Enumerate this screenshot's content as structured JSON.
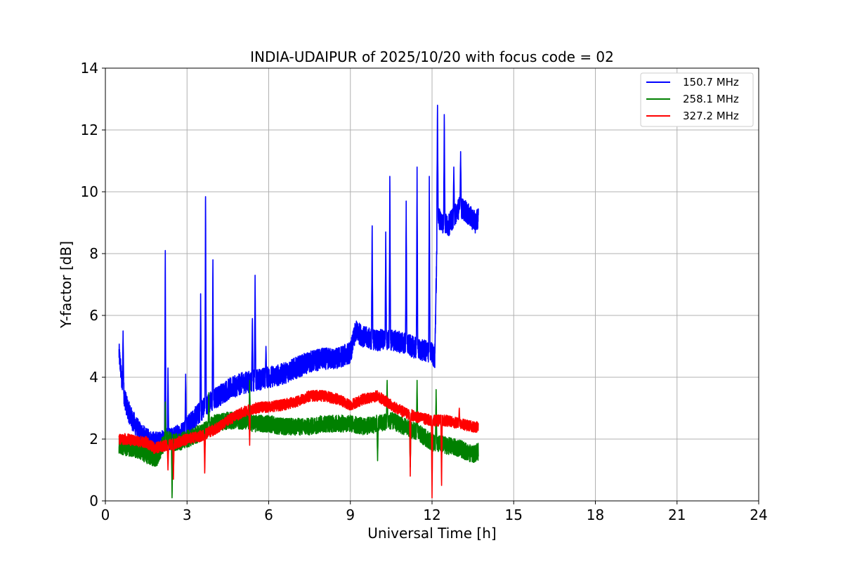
{
  "chart_data": {
    "type": "line",
    "title": "INDIA-UDAIPUR of 2025/10/20 with focus code = 02",
    "xlabel": "Universal Time [h]",
    "ylabel": "Y-factor [dB]",
    "xlim": [
      0,
      24
    ],
    "ylim": [
      0,
      14
    ],
    "xticks": [
      0,
      3,
      6,
      9,
      12,
      15,
      18,
      21,
      24
    ],
    "yticks": [
      0,
      2,
      4,
      6,
      8,
      10,
      12,
      14
    ],
    "grid": true,
    "legend_position": "top-right",
    "series": [
      {
        "name": "150.7 MHz",
        "color": "#0000ff",
        "noise": 0.35,
        "x": [
          0.5,
          0.55,
          0.6,
          0.7,
          0.8,
          1.0,
          1.2,
          1.5,
          1.8,
          2.0,
          2.2,
          2.4,
          2.6,
          2.8,
          3.0,
          3.3,
          3.6,
          4.0,
          4.5,
          5.0,
          5.5,
          6.0,
          6.5,
          7.0,
          7.5,
          8.0,
          8.5,
          9.0,
          9.2,
          9.5,
          10.0,
          10.5,
          11.0,
          11.5,
          12.0,
          12.1,
          12.2,
          12.4,
          12.6,
          12.8,
          13.0,
          13.2,
          13.4,
          13.6,
          13.7
        ],
        "y": [
          4.8,
          4.4,
          3.9,
          3.4,
          3.0,
          2.6,
          2.3,
          2.0,
          1.9,
          1.9,
          2.0,
          2.0,
          2.1,
          2.2,
          2.4,
          2.7,
          3.0,
          3.3,
          3.6,
          3.8,
          3.9,
          4.0,
          4.1,
          4.3,
          4.5,
          4.6,
          4.6,
          4.8,
          5.5,
          5.3,
          5.2,
          5.2,
          5.1,
          4.9,
          4.8,
          4.6,
          9.2,
          9.0,
          8.9,
          9.2,
          9.5,
          9.4,
          9.2,
          9.0,
          9.2
        ],
        "spikes": [
          [
            0.65,
            5.5
          ],
          [
            2.2,
            8.1
          ],
          [
            2.3,
            4.3
          ],
          [
            2.95,
            4.1
          ],
          [
            3.5,
            6.7
          ],
          [
            3.68,
            10.2
          ],
          [
            3.95,
            7.8
          ],
          [
            5.4,
            5.9
          ],
          [
            5.5,
            7.3
          ],
          [
            5.9,
            5.0
          ],
          [
            9.8,
            8.9
          ],
          [
            10.3,
            8.7
          ],
          [
            10.45,
            10.5
          ],
          [
            11.05,
            9.7
          ],
          [
            11.45,
            10.8
          ],
          [
            11.9,
            10.5
          ],
          [
            12.2,
            12.8
          ],
          [
            12.45,
            12.5
          ],
          [
            12.8,
            10.8
          ],
          [
            13.05,
            11.3
          ]
        ]
      },
      {
        "name": "258.1 MHz",
        "color": "#008000",
        "noise": 0.28,
        "x": [
          0.5,
          0.7,
          1.0,
          1.3,
          1.5,
          1.7,
          1.9,
          2.1,
          2.3,
          2.5,
          2.7,
          3.0,
          3.5,
          4.0,
          4.5,
          5.0,
          5.5,
          6.0,
          6.5,
          7.0,
          7.5,
          8.0,
          8.5,
          9.0,
          9.5,
          10.0,
          10.5,
          11.0,
          11.5,
          12.0,
          12.5,
          13.0,
          13.5,
          13.7
        ],
        "y": [
          1.8,
          1.75,
          1.7,
          1.6,
          1.5,
          1.4,
          1.4,
          1.8,
          2.0,
          1.9,
          1.9,
          2.0,
          2.2,
          2.5,
          2.6,
          2.6,
          2.5,
          2.5,
          2.4,
          2.4,
          2.4,
          2.5,
          2.5,
          2.5,
          2.4,
          2.5,
          2.6,
          2.4,
          2.2,
          1.9,
          1.8,
          1.7,
          1.5,
          1.6
        ],
        "spikes": [
          [
            2.2,
            3.2
          ],
          [
            2.45,
            0.1
          ],
          [
            3.8,
            3.5
          ],
          [
            5.3,
            3.9
          ],
          [
            10.0,
            1.3
          ],
          [
            10.35,
            3.9
          ],
          [
            11.45,
            3.9
          ],
          [
            12.15,
            3.6
          ],
          [
            11.2,
            1.1
          ]
        ]
      },
      {
        "name": "327.2 MHz",
        "color": "#ff0000",
        "noise": 0.18,
        "x": [
          0.5,
          0.8,
          1.0,
          1.5,
          1.8,
          2.0,
          2.5,
          3.0,
          3.5,
          4.0,
          4.5,
          5.0,
          5.5,
          6.0,
          6.5,
          7.0,
          7.5,
          8.0,
          8.5,
          9.0,
          9.5,
          10.0,
          10.5,
          11.0,
          11.5,
          12.0,
          12.5,
          13.0,
          13.5,
          13.7
        ],
        "y": [
          2.0,
          2.0,
          1.95,
          1.9,
          1.7,
          1.75,
          1.85,
          2.0,
          2.1,
          2.3,
          2.6,
          2.85,
          3.0,
          3.05,
          3.1,
          3.2,
          3.4,
          3.4,
          3.3,
          3.1,
          3.3,
          3.4,
          3.1,
          2.85,
          2.7,
          2.6,
          2.6,
          2.5,
          2.4,
          2.4
        ],
        "spikes": [
          [
            2.3,
            1.0
          ],
          [
            2.5,
            0.7
          ],
          [
            3.65,
            0.9
          ],
          [
            5.3,
            1.8
          ],
          [
            11.2,
            0.8
          ],
          [
            12.0,
            0.1
          ],
          [
            12.35,
            0.5
          ],
          [
            13.0,
            3.0
          ]
        ]
      }
    ]
  }
}
